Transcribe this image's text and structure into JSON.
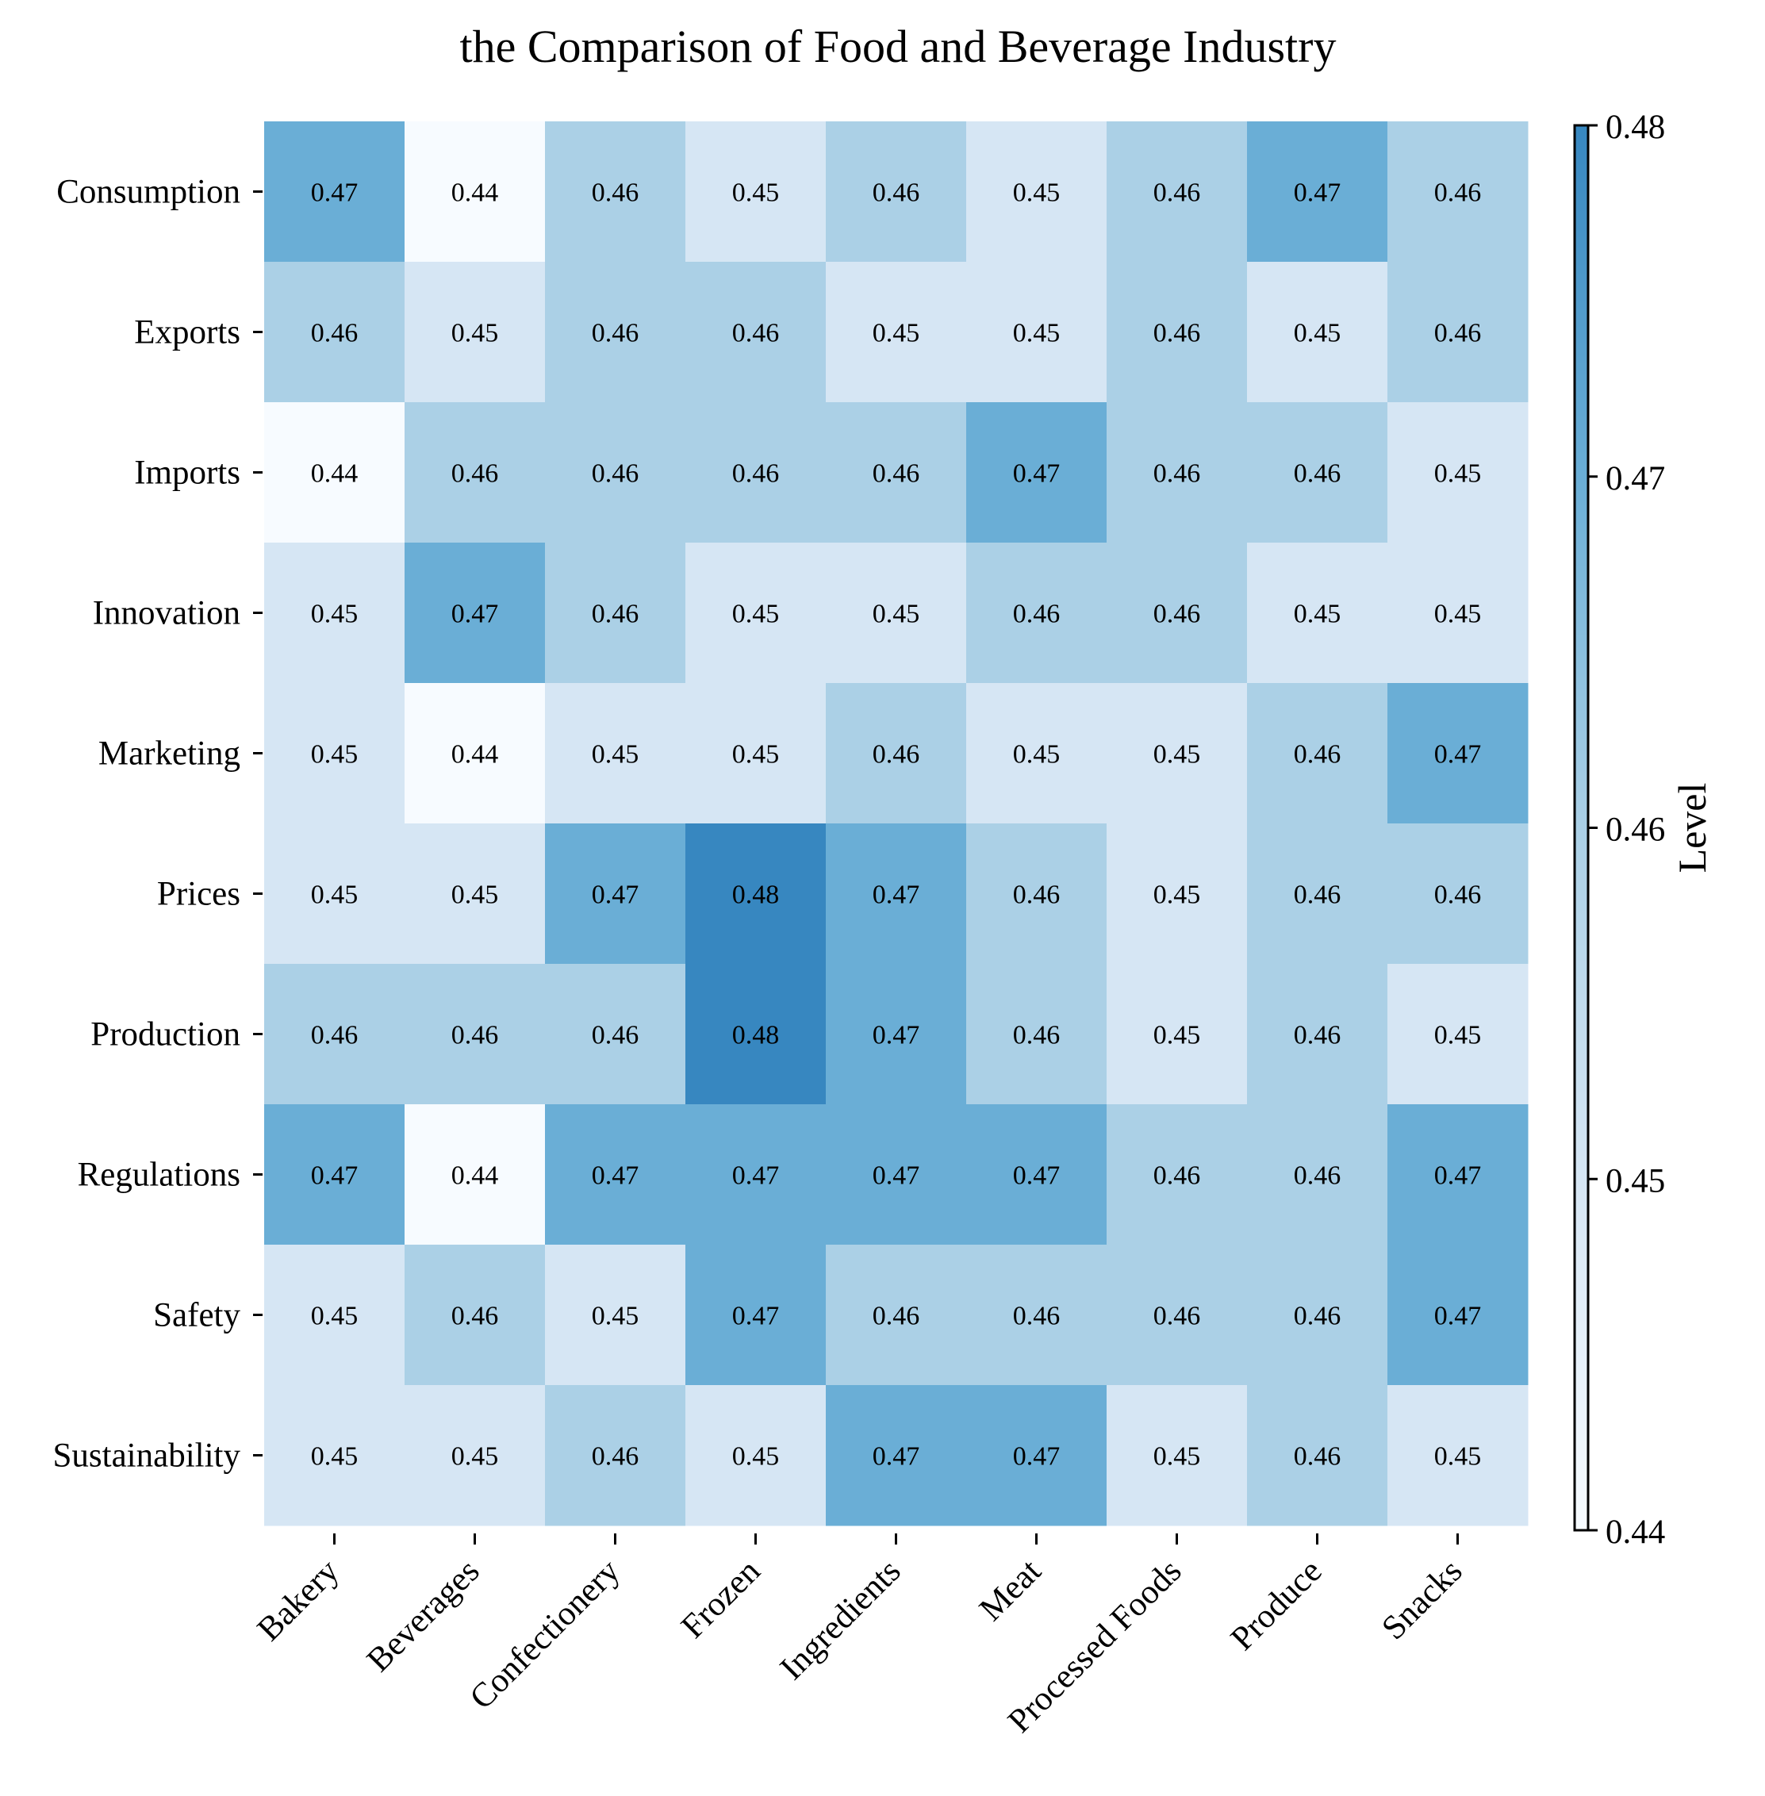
{
  "chart_data": {
    "type": "heatmap",
    "title": "the Comparison of Food and Beverage Industry",
    "x_categories": [
      "Bakery",
      "Beverages",
      "Confectionery",
      "Frozen",
      "Ingredients",
      "Meat",
      "Processed Foods",
      "Produce",
      "Snacks"
    ],
    "y_categories": [
      "Consumption",
      "Exports",
      "Imports",
      "Innovation",
      "Marketing",
      "Prices",
      "Production",
      "Regulations",
      "Safety",
      "Sustainability"
    ],
    "values": [
      [
        0.47,
        0.44,
        0.46,
        0.45,
        0.46,
        0.45,
        0.46,
        0.47,
        0.46
      ],
      [
        0.46,
        0.45,
        0.46,
        0.46,
        0.45,
        0.45,
        0.46,
        0.45,
        0.46
      ],
      [
        0.44,
        0.46,
        0.46,
        0.46,
        0.46,
        0.47,
        0.46,
        0.46,
        0.45
      ],
      [
        0.45,
        0.47,
        0.46,
        0.45,
        0.45,
        0.46,
        0.46,
        0.45,
        0.45
      ],
      [
        0.45,
        0.44,
        0.45,
        0.45,
        0.46,
        0.45,
        0.45,
        0.46,
        0.47
      ],
      [
        0.45,
        0.45,
        0.47,
        0.48,
        0.47,
        0.46,
        0.45,
        0.46,
        0.46
      ],
      [
        0.46,
        0.46,
        0.46,
        0.48,
        0.47,
        0.46,
        0.45,
        0.46,
        0.45
      ],
      [
        0.47,
        0.44,
        0.47,
        0.47,
        0.47,
        0.47,
        0.46,
        0.46,
        0.47
      ],
      [
        0.45,
        0.46,
        0.45,
        0.47,
        0.46,
        0.46,
        0.46,
        0.46,
        0.47
      ],
      [
        0.45,
        0.45,
        0.46,
        0.45,
        0.47,
        0.47,
        0.45,
        0.46,
        0.45
      ]
    ],
    "colorbar": {
      "label": "Level",
      "range": [
        0.44,
        0.48
      ],
      "ticks": [
        "0.44",
        "0.45",
        "0.46",
        "0.47",
        "0.48"
      ]
    },
    "colors": {
      "0.44": "#f7fbff",
      "0.45": "#d6e6f4",
      "0.46": "#abd0e6",
      "0.47": "#6aaed6",
      "0.48": "#3787c0"
    }
  }
}
